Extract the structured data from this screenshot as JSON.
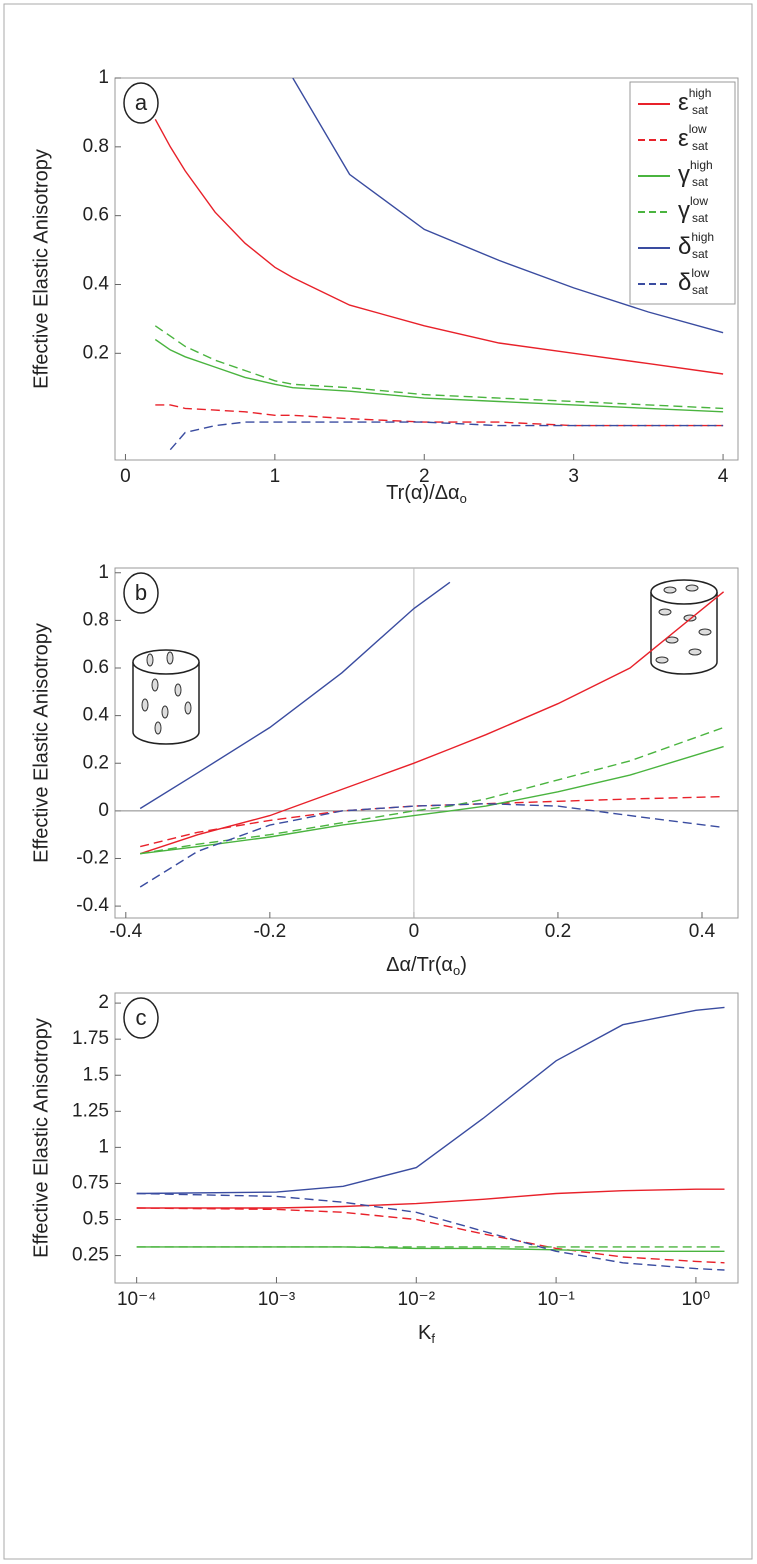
{
  "chart_data": [
    {
      "type": "line",
      "panel_label": "a",
      "ylabel": "Effective Elastic Anisotropy",
      "xlabel": [
        {
          "text": "Tr(α)/Δα"
        },
        {
          "text": "o",
          "sub": true
        }
      ],
      "xlim": [
        -0.07,
        4.1
      ],
      "xticks": [
        0,
        1,
        2,
        3,
        4
      ],
      "ylim": [
        -0.11,
        1
      ],
      "yticks": [
        0.2,
        0.4,
        0.6,
        0.8,
        1
      ],
      "legend": "upper right",
      "x": [
        0.2,
        0.3,
        0.4,
        0.6,
        0.8,
        1,
        1.12,
        1.5,
        2,
        2.5,
        3,
        3.5,
        4
      ],
      "series": [
        {
          "name": "ε",
          "superscript": "high",
          "subscript": "sat",
          "color": "#e8212a",
          "dash": false,
          "values": [
            0.88,
            0.8,
            0.73,
            0.61,
            0.52,
            0.45,
            0.42,
            0.34,
            0.28,
            0.23,
            0.2,
            0.17,
            0.14
          ]
        },
        {
          "name": "ε",
          "superscript": "low",
          "subscript": "sat",
          "color": "#e8212a",
          "dash": true,
          "values": [
            0.05,
            0.05,
            0.04,
            0.035,
            0.03,
            0.02,
            0.02,
            0.01,
            0.0,
            0.0,
            -0.01,
            -0.01,
            -0.01
          ]
        },
        {
          "name": "γ",
          "superscript": "high",
          "subscript": "sat",
          "color": "#4ab43f",
          "dash": false,
          "values": [
            0.24,
            0.21,
            0.19,
            0.16,
            0.13,
            0.11,
            0.1,
            0.09,
            0.07,
            0.06,
            0.05,
            0.04,
            0.03
          ]
        },
        {
          "name": "γ",
          "superscript": "low",
          "subscript": "sat",
          "color": "#4ab43f",
          "dash": true,
          "values": [
            0.28,
            0.25,
            0.22,
            0.18,
            0.15,
            0.12,
            0.11,
            0.1,
            0.08,
            0.07,
            0.06,
            0.05,
            0.04
          ]
        },
        {
          "name": "δ",
          "superscript": "high",
          "subscript": "sat",
          "color": "#3a4ca0",
          "dash": false,
          "values": [
            null,
            null,
            null,
            null,
            null,
            null,
            1.0,
            0.72,
            0.56,
            0.47,
            0.39,
            0.32,
            0.26
          ]
        },
        {
          "name": "δ",
          "superscript": "low",
          "subscript": "sat",
          "color": "#3a4ca0",
          "dash": true,
          "values": [
            null,
            -0.08,
            -0.03,
            -0.01,
            0.0,
            0.0,
            0.0,
            0.0,
            0.0,
            -0.01,
            -0.01,
            -0.01,
            -0.01
          ]
        }
      ]
    },
    {
      "type": "line",
      "panel_label": "b",
      "ylabel": "Effective Elastic Anisotropy",
      "xlabel": [
        {
          "text": "Δα/Tr(α"
        },
        {
          "text": "o",
          "sub": true
        },
        {
          "text": ")"
        }
      ],
      "xlim": [
        -0.415,
        0.45
      ],
      "xticks": [
        -0.4,
        -0.2,
        0,
        0.2,
        0.4
      ],
      "ylim": [
        -0.45,
        1.02
      ],
      "yticks": [
        -0.4,
        -0.2,
        0,
        0.2,
        0.4,
        0.6,
        0.8,
        1
      ],
      "zero_lines": true,
      "x": [
        -0.38,
        -0.3,
        -0.2,
        -0.1,
        0,
        0.05,
        0.1,
        0.2,
        0.3,
        0.43
      ],
      "series": [
        {
          "color": "#e8212a",
          "dash": false,
          "values": [
            -0.18,
            -0.1,
            -0.02,
            0.09,
            0.2,
            0.26,
            0.32,
            0.45,
            0.6,
            0.92
          ]
        },
        {
          "color": "#e8212a",
          "dash": true,
          "values": [
            -0.15,
            -0.09,
            -0.04,
            0.0,
            0.02,
            0.025,
            0.03,
            0.04,
            0.05,
            0.06
          ]
        },
        {
          "color": "#4ab43f",
          "dash": false,
          "values": [
            -0.18,
            -0.15,
            -0.11,
            -0.06,
            -0.02,
            0.0,
            0.02,
            0.08,
            0.15,
            0.27
          ]
        },
        {
          "color": "#4ab43f",
          "dash": true,
          "values": [
            -0.18,
            -0.14,
            -0.1,
            -0.05,
            0.0,
            0.02,
            0.05,
            0.13,
            0.21,
            0.35
          ]
        },
        {
          "color": "#3a4ca0",
          "dash": false,
          "values": [
            0.01,
            0.16,
            0.35,
            0.58,
            0.85,
            0.96,
            null,
            null,
            null,
            null
          ]
        },
        {
          "color": "#3a4ca0",
          "dash": true,
          "values": [
            -0.32,
            -0.17,
            -0.06,
            0.0,
            0.02,
            0.025,
            0.03,
            0.02,
            -0.02,
            -0.07
          ]
        }
      ]
    },
    {
      "type": "line",
      "panel_label": "c",
      "ylabel": "Effective Elastic Anisotropy",
      "xlabel": [
        {
          "text": "K"
        },
        {
          "text": "f",
          "sub": true
        }
      ],
      "xlog": true,
      "xlim": [
        7e-05,
        2
      ],
      "xticks": [
        {
          "value": 0.0001,
          "label": "10⁻⁴"
        },
        {
          "value": 0.001,
          "label": "10⁻³"
        },
        {
          "value": 0.01,
          "label": "10⁻²"
        },
        {
          "value": 0.1,
          "label": "10⁻¹"
        },
        {
          "value": 1,
          "label": "10⁰"
        }
      ],
      "ylim": [
        0.06,
        2.07
      ],
      "yticks": [
        0.25,
        0.5,
        0.75,
        1,
        1.25,
        1.5,
        1.75,
        2
      ],
      "x": [
        0.0001,
        0.001,
        0.003,
        0.01,
        0.03,
        0.1,
        0.3,
        1,
        1.6
      ],
      "series": [
        {
          "color": "#3a4ca0",
          "dash": false,
          "values": [
            0.68,
            0.69,
            0.73,
            0.86,
            1.2,
            1.6,
            1.85,
            1.95,
            1.97
          ]
        },
        {
          "color": "#e8212a",
          "dash": false,
          "values": [
            0.58,
            0.58,
            0.59,
            0.61,
            0.64,
            0.68,
            0.7,
            0.71,
            0.71
          ]
        },
        {
          "color": "#e8212a",
          "dash": true,
          "values": [
            0.58,
            0.57,
            0.55,
            0.5,
            0.4,
            0.3,
            0.24,
            0.21,
            0.2
          ]
        },
        {
          "color": "#4ab43f",
          "dash": false,
          "values": [
            0.31,
            0.31,
            0.31,
            0.3,
            0.3,
            0.29,
            0.28,
            0.28,
            0.28
          ]
        },
        {
          "color": "#4ab43f",
          "dash": true,
          "values": [
            0.31,
            0.31,
            0.31,
            0.31,
            0.31,
            0.31,
            0.31,
            0.31,
            0.31
          ]
        },
        {
          "color": "#3a4ca0",
          "dash": true,
          "values": [
            0.68,
            0.66,
            0.62,
            0.55,
            0.42,
            0.28,
            0.2,
            0.16,
            0.15
          ]
        }
      ]
    }
  ]
}
